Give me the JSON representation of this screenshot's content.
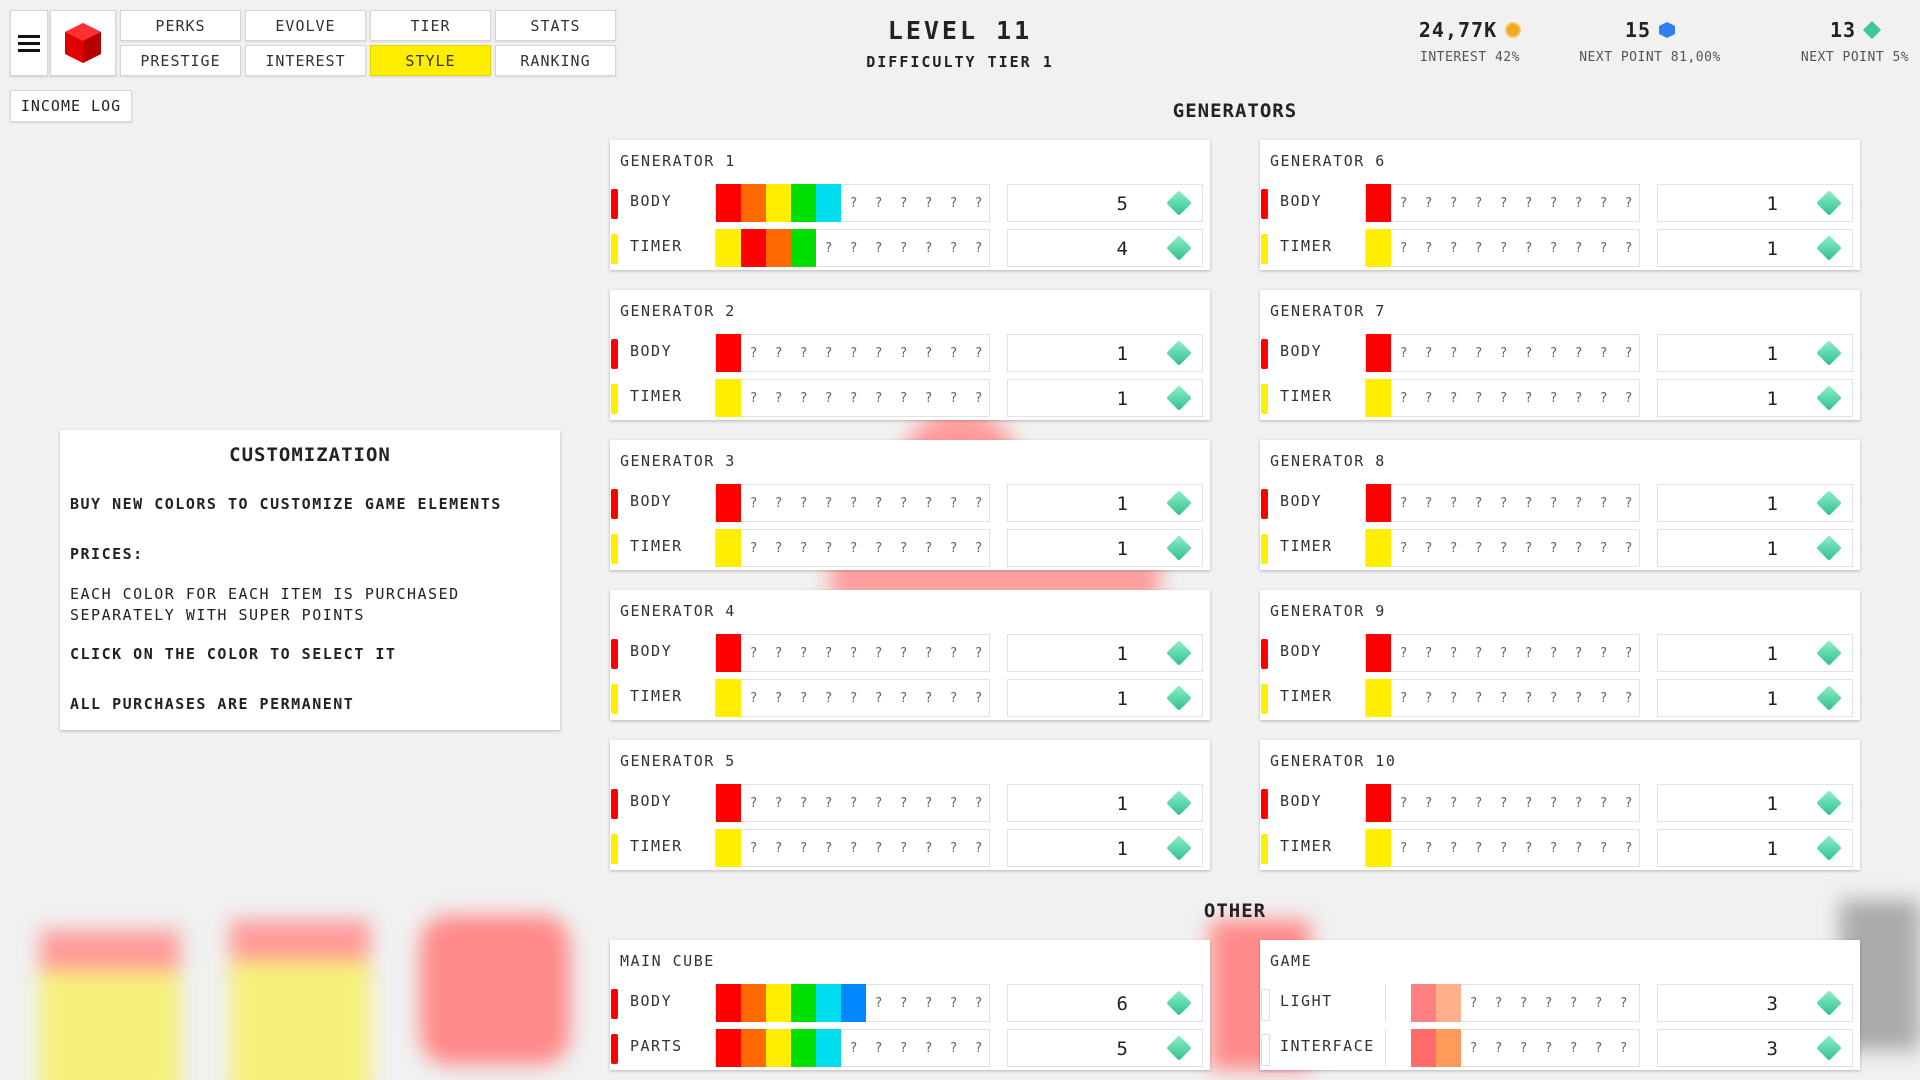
{
  "header": {
    "tabs": [
      "PERKS",
      "EVOLVE",
      "TIER",
      "STATS",
      "PRESTIGE",
      "INTEREST",
      "STYLE",
      "RANKING"
    ],
    "active_tab": "STYLE",
    "income_log": "INCOME LOG",
    "level": "LEVEL 11",
    "difficulty": "DIFFICULTY TIER 1",
    "stats": [
      {
        "value": "24,77K",
        "sub": "INTEREST 42%",
        "icon": "coin-icon",
        "color": "#f5a623"
      },
      {
        "value": "15",
        "sub": "NEXT POINT 81,00%",
        "icon": "blue-gem-icon",
        "color": "#2f80ed"
      },
      {
        "value": "13",
        "sub": "NEXT POINT 5%",
        "icon": "green-gem-icon",
        "color": "#3cc99a"
      }
    ]
  },
  "customization": {
    "title": "CUSTOMIZATION",
    "line1": "BUY NEW COLORS TO CUSTOMIZE GAME ELEMENTS",
    "prices": "PRICES:",
    "line2": "EACH COLOR FOR EACH ITEM IS PURCHASED SEPARATELY WITH SUPER POINTS",
    "line3": "CLICK ON THE COLOR TO SELECT IT",
    "line4": "ALL PURCHASES ARE PERMANENT"
  },
  "generators_title": "GENERATORS",
  "other_title": "OTHER",
  "colors": {
    "red": "#ff0000",
    "orange": "#ff6a00",
    "yellow": "#ffee00",
    "green": "#00e000",
    "cyan": "#00ddee",
    "blue": "#0088ff",
    "salmon": "#ff8080",
    "peach": "#ffb08a"
  },
  "generators": [
    {
      "title": "GENERATOR 1",
      "rows": [
        {
          "label": "BODY",
          "mark": "#ff0000",
          "colors": [
            "#ff0000",
            "#ff6a00",
            "#ffee00",
            "#00e000",
            "#00ddee"
          ],
          "slots": 11,
          "count": "5"
        },
        {
          "label": "TIMER",
          "mark": "#ffee00",
          "colors": [
            "#ffee00",
            "#ff0000",
            "#ff6a00",
            "#00e000"
          ],
          "slots": 11,
          "count": "4"
        }
      ]
    },
    {
      "title": "GENERATOR 6",
      "rows": [
        {
          "label": "BODY",
          "mark": "#ff0000",
          "colors": [
            "#ff0000"
          ],
          "slots": 11,
          "count": "1"
        },
        {
          "label": "TIMER",
          "mark": "#ffee00",
          "colors": [
            "#ffee00"
          ],
          "slots": 11,
          "count": "1"
        }
      ]
    },
    {
      "title": "GENERATOR 2",
      "rows": [
        {
          "label": "BODY",
          "mark": "#ff0000",
          "colors": [
            "#ff0000"
          ],
          "slots": 11,
          "count": "1"
        },
        {
          "label": "TIMER",
          "mark": "#ffee00",
          "colors": [
            "#ffee00"
          ],
          "slots": 11,
          "count": "1"
        }
      ]
    },
    {
      "title": "GENERATOR 7",
      "rows": [
        {
          "label": "BODY",
          "mark": "#ff0000",
          "colors": [
            "#ff0000"
          ],
          "slots": 11,
          "count": "1"
        },
        {
          "label": "TIMER",
          "mark": "#ffee00",
          "colors": [
            "#ffee00"
          ],
          "slots": 11,
          "count": "1"
        }
      ]
    },
    {
      "title": "GENERATOR 3",
      "rows": [
        {
          "label": "BODY",
          "mark": "#ff0000",
          "colors": [
            "#ff0000"
          ],
          "slots": 11,
          "count": "1"
        },
        {
          "label": "TIMER",
          "mark": "#ffee00",
          "colors": [
            "#ffee00"
          ],
          "slots": 11,
          "count": "1"
        }
      ]
    },
    {
      "title": "GENERATOR 8",
      "rows": [
        {
          "label": "BODY",
          "mark": "#ff0000",
          "colors": [
            "#ff0000"
          ],
          "slots": 11,
          "count": "1"
        },
        {
          "label": "TIMER",
          "mark": "#ffee00",
          "colors": [
            "#ffee00"
          ],
          "slots": 11,
          "count": "1"
        }
      ]
    },
    {
      "title": "GENERATOR 4",
      "rows": [
        {
          "label": "BODY",
          "mark": "#ff0000",
          "colors": [
            "#ff0000"
          ],
          "slots": 11,
          "count": "1"
        },
        {
          "label": "TIMER",
          "mark": "#ffee00",
          "colors": [
            "#ffee00"
          ],
          "slots": 11,
          "count": "1"
        }
      ]
    },
    {
      "title": "GENERATOR 9",
      "rows": [
        {
          "label": "BODY",
          "mark": "#ff0000",
          "colors": [
            "#ff0000"
          ],
          "slots": 11,
          "count": "1"
        },
        {
          "label": "TIMER",
          "mark": "#ffee00",
          "colors": [
            "#ffee00"
          ],
          "slots": 11,
          "count": "1"
        }
      ]
    },
    {
      "title": "GENERATOR 5",
      "rows": [
        {
          "label": "BODY",
          "mark": "#ff0000",
          "colors": [
            "#ff0000"
          ],
          "slots": 11,
          "count": "1"
        },
        {
          "label": "TIMER",
          "mark": "#ffee00",
          "colors": [
            "#ffee00"
          ],
          "slots": 11,
          "count": "1"
        }
      ]
    },
    {
      "title": "GENERATOR 10",
      "rows": [
        {
          "label": "BODY",
          "mark": "#ff0000",
          "colors": [
            "#ff0000"
          ],
          "slots": 11,
          "count": "1"
        },
        {
          "label": "TIMER",
          "mark": "#ffee00",
          "colors": [
            "#ffee00"
          ],
          "slots": 11,
          "count": "1"
        }
      ]
    }
  ],
  "other": [
    {
      "title": "MAIN CUBE",
      "rows": [
        {
          "label": "BODY",
          "mark": "#ff0000",
          "colors": [
            "#ff0000",
            "#ff6a00",
            "#ffee00",
            "#00e000",
            "#00ddee",
            "#0088ff"
          ],
          "slots": 11,
          "count": "6"
        },
        {
          "label": "PARTS",
          "mark": "#ff0000",
          "colors": [
            "#ff0000",
            "#ff6a00",
            "#ffee00",
            "#00e000",
            "#00ddee"
          ],
          "slots": 11,
          "count": "5"
        }
      ]
    },
    {
      "title": "GAME",
      "rows": [
        {
          "label": "LIGHT",
          "mark": "#ffffff",
          "colors": [
            "#ffffff",
            "#ff8080",
            "#ffb08a"
          ],
          "slots": 10,
          "count": "3"
        },
        {
          "label": "INTERFACE",
          "mark": "#ffffff",
          "colors": [
            "#ffffff",
            "#ff6b6b",
            "#ff9a5a"
          ],
          "slots": 10,
          "count": "3"
        }
      ]
    }
  ]
}
